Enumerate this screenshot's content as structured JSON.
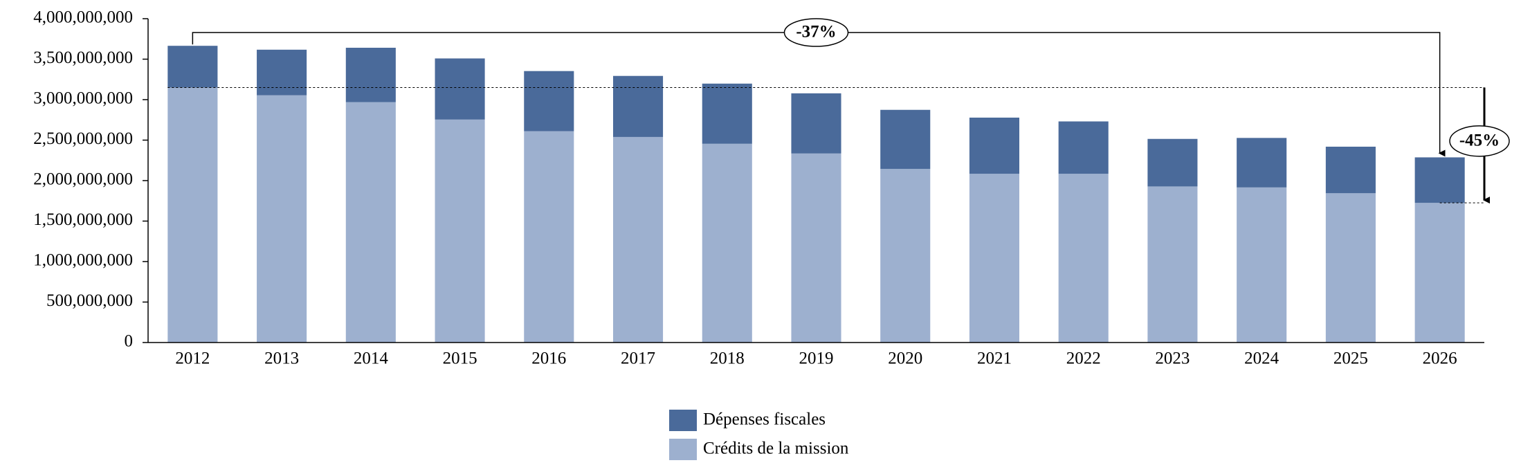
{
  "chart_data": {
    "type": "stacked-bar",
    "categories": [
      "2012",
      "2013",
      "2014",
      "2015",
      "2016",
      "2017",
      "2018",
      "2019",
      "2020",
      "2021",
      "2022",
      "2023",
      "2024",
      "2025",
      "2026"
    ],
    "series": [
      {
        "name": "Crédits de la mission",
        "color": "#9db0cf",
        "values": [
          3150000000,
          3054000000,
          2970000000,
          2754000000,
          2611000000,
          2539000000,
          2455000000,
          2335000000,
          2144000000,
          2084000000,
          2084000000,
          1928000000,
          1916000000,
          1844000000,
          1725000000
        ]
      },
      {
        "name": "Dépenses fiscales",
        "color": "#4a6a9a",
        "values": [
          515000000,
          563000000,
          671000000,
          755000000,
          742000000,
          754000000,
          743000000,
          743000000,
          730000000,
          694000000,
          647000000,
          587000000,
          611000000,
          575000000,
          562000000
        ]
      }
    ],
    "ylim": [
      0,
      4000000000
    ],
    "yticks": [
      0,
      {
        "value": 500000000,
        "label": "500,000,000"
      },
      {
        "value": 1000000000,
        "label": "1,000,000,000"
      },
      {
        "value": 1500000000,
        "label": "1,500,000,000"
      },
      {
        "value": 2000000000,
        "label": "2,000,000,000"
      },
      {
        "value": 2500000000,
        "label": "2,500,000,000"
      },
      {
        "value": 3000000000,
        "label": "3,000,000,000"
      },
      {
        "value": 3500000000,
        "label": "3,500,000,000"
      },
      {
        "value": 4000000000,
        "label": "4,000,000,000"
      }
    ],
    "annotations": [
      "-37%",
      "-45%"
    ]
  }
}
